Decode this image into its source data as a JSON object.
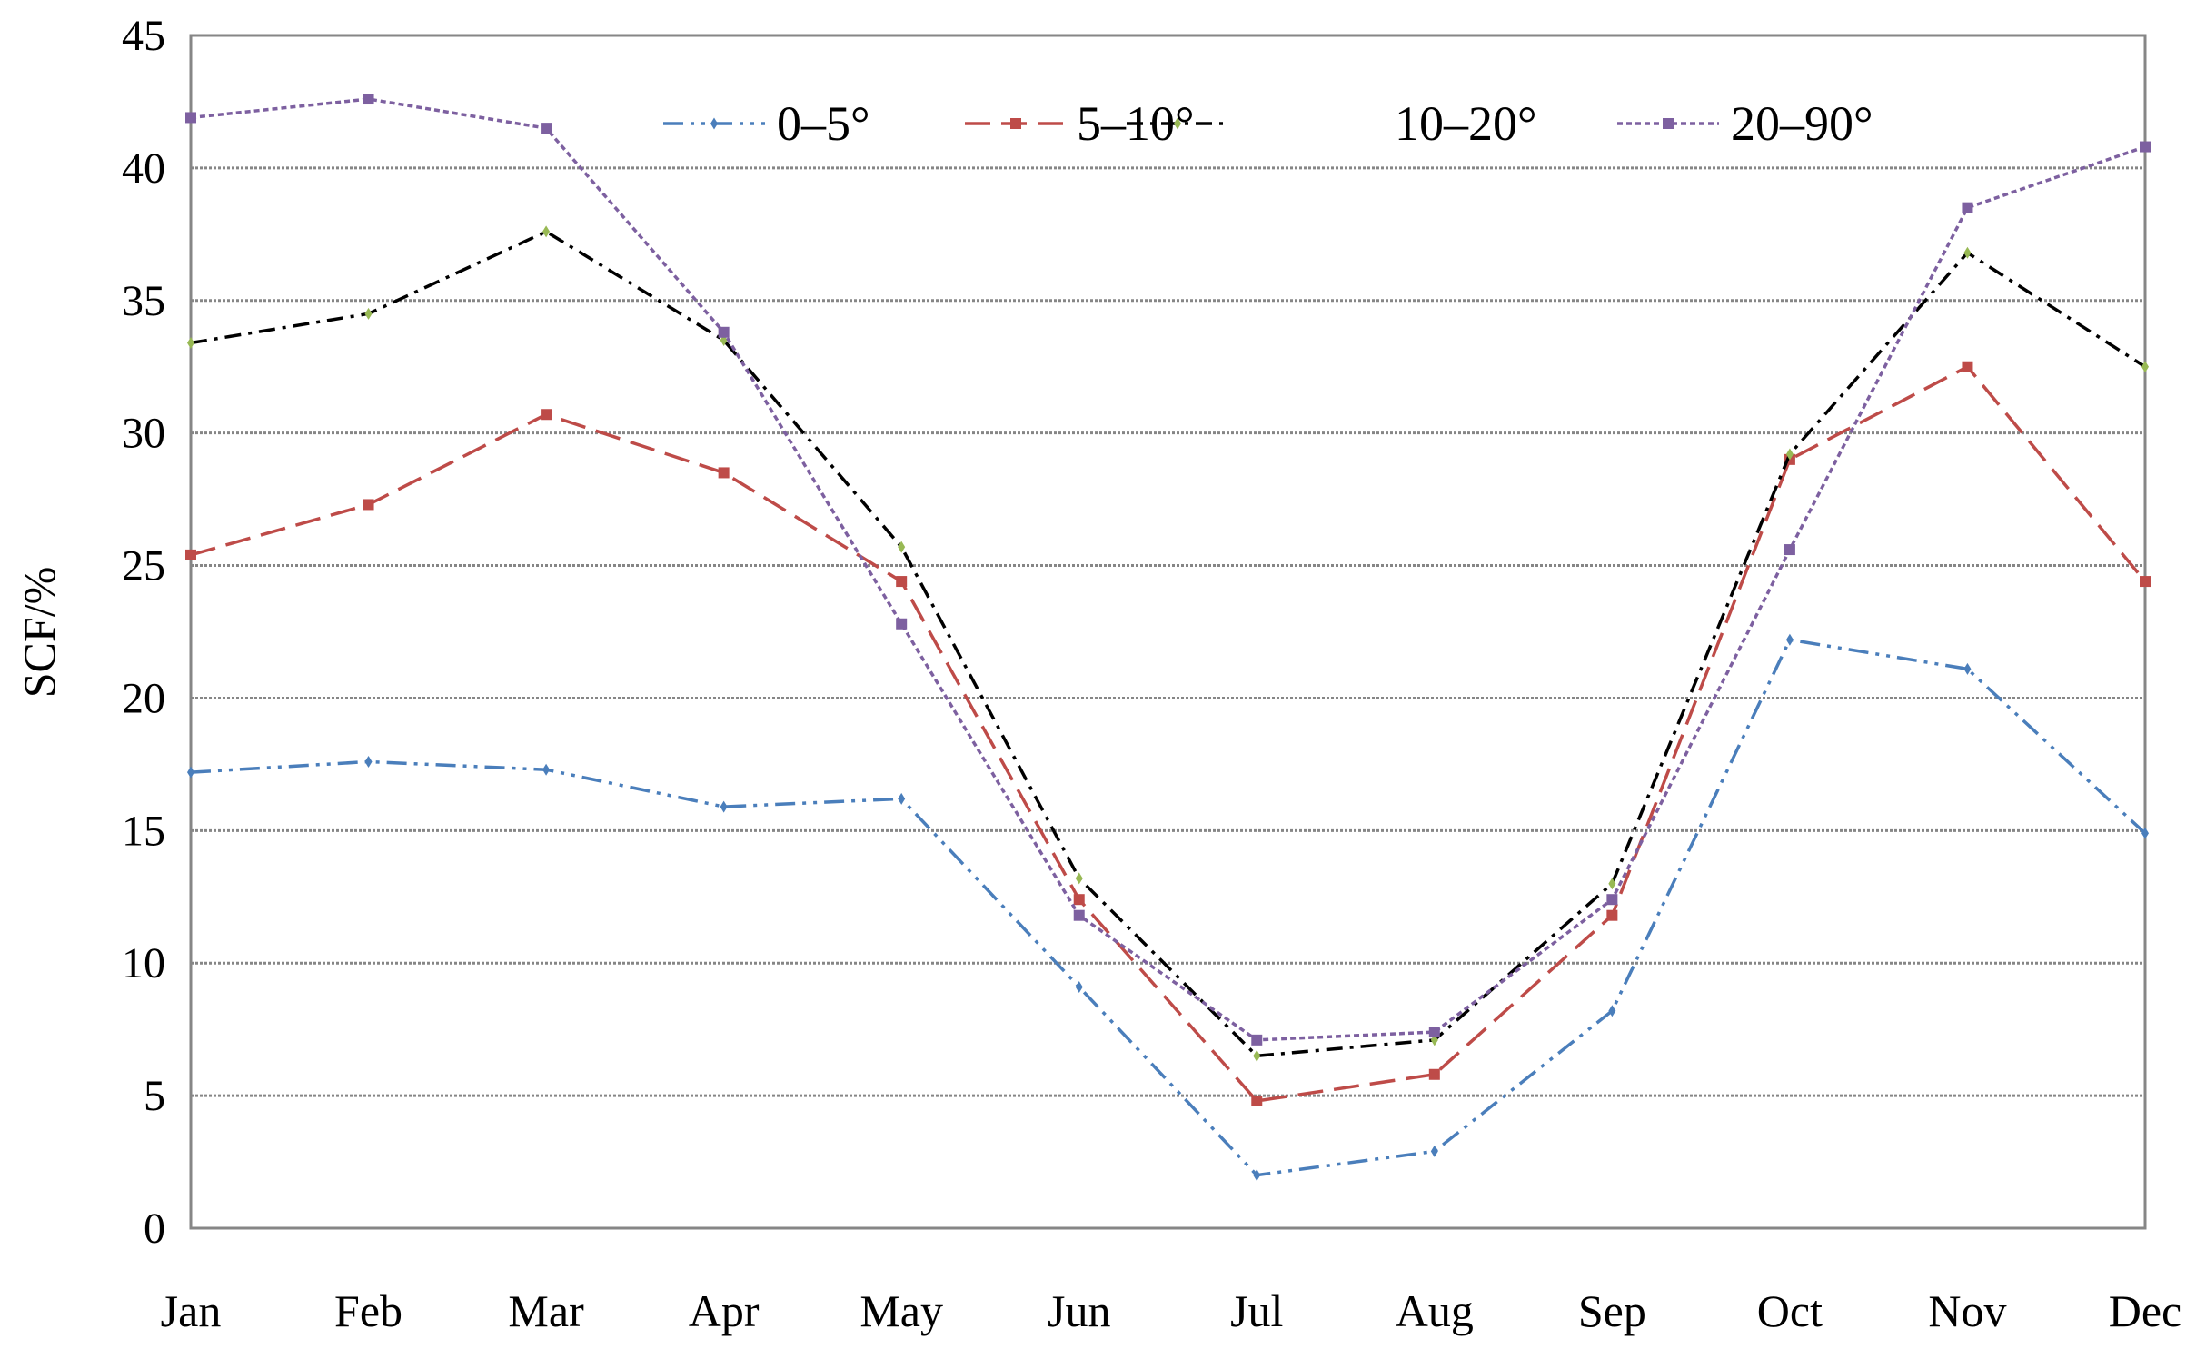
{
  "chart_data": {
    "type": "line",
    "title": "",
    "xlabel": "",
    "ylabel": "SCF/%",
    "ylim": [
      0,
      45
    ],
    "yticks": [
      "0",
      "5",
      "10",
      "15",
      "20",
      "25",
      "30",
      "35",
      "40",
      "45"
    ],
    "categories": [
      "Jan",
      "Feb",
      "Mar",
      "Apr",
      "May",
      "Jun",
      "Jul",
      "Aug",
      "Sep",
      "Oct",
      "Nov",
      "Dec"
    ],
    "grid": true,
    "legend_position": "top-center",
    "series": [
      {
        "name": "0–5°",
        "color": "#4a7ebb",
        "dash": "dashdotdot",
        "marker": "diamond",
        "values": [
          17.2,
          17.6,
          17.3,
          15.9,
          16.2,
          9.1,
          2.0,
          2.9,
          8.2,
          22.2,
          21.1,
          14.9
        ]
      },
      {
        "name": "5–10°",
        "color": "#be4b48",
        "dash": "dash",
        "marker": "square",
        "values": [
          25.4,
          27.3,
          30.7,
          28.5,
          24.4,
          12.4,
          4.8,
          5.8,
          11.8,
          29.0,
          32.5,
          24.4
        ]
      },
      {
        "name": "10–20°",
        "color": "#000000",
        "markerColor": "#98b954",
        "dash": "dashdot",
        "marker": "diamond",
        "values": [
          33.4,
          34.5,
          37.6,
          33.5,
          25.7,
          13.2,
          6.5,
          7.1,
          13.0,
          29.2,
          36.8,
          32.5
        ]
      },
      {
        "name": "20–90°",
        "color": "#7d60a0",
        "dash": "dot",
        "marker": "square",
        "values": [
          41.9,
          42.6,
          41.5,
          33.8,
          22.8,
          11.8,
          7.1,
          7.4,
          12.4,
          25.6,
          38.5,
          40.8
        ]
      }
    ]
  }
}
